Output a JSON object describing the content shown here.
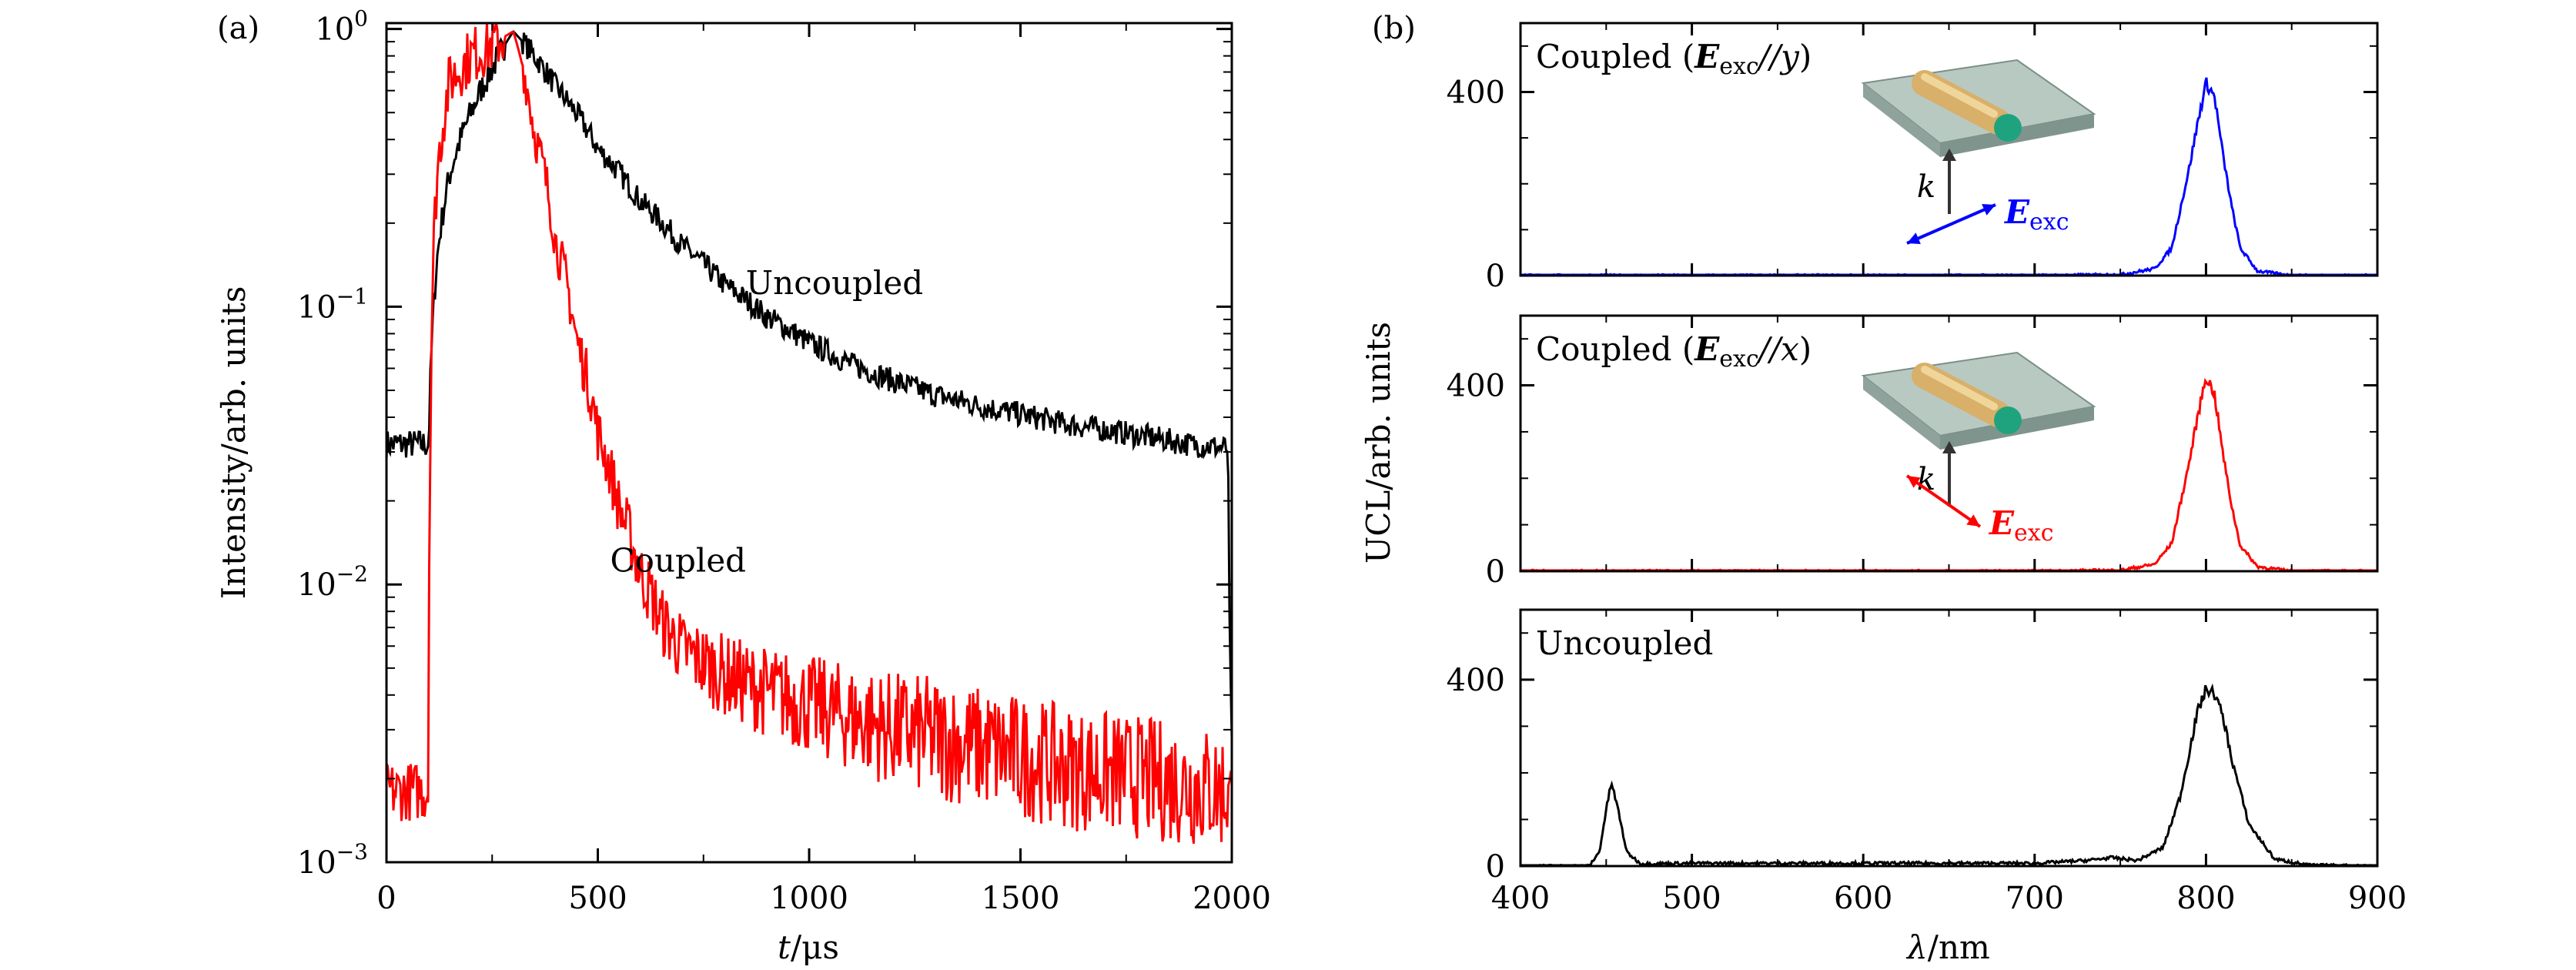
{
  "chart_data": [
    {
      "panel_label": "(a)",
      "type": "line",
      "xlabel": {
        "var": "t",
        "unit": "/μs"
      },
      "ylabel": "Intensity/arb. units",
      "xlim": [
        0,
        2000
      ],
      "ylim": [
        0.001,
        1.05
      ],
      "yscale": "log",
      "xticks": [
        0,
        500,
        1000,
        1500,
        2000
      ],
      "yticks": [
        {
          "base": "10",
          "exp": "−3",
          "value": 0.001
        },
        {
          "base": "10",
          "exp": "−2",
          "value": 0.01
        },
        {
          "base": "10",
          "exp": "−1",
          "value": 0.1
        },
        {
          "base": "10",
          "exp": "0",
          "value": 1
        }
      ],
      "series": [
        {
          "name": "Uncoupled",
          "color": "#000000",
          "x": [
            0,
            100,
            105,
            120,
            150,
            200,
            250,
            300,
            400,
            500,
            600,
            700,
            800,
            900,
            1000,
            1100,
            1200,
            1300,
            1400,
            1500,
            1600,
            1700,
            1800,
            1900,
            1990,
            1995,
            2000
          ],
          "y": [
            0.032,
            0.032,
            0.06,
            0.15,
            0.3,
            0.5,
            0.72,
            0.98,
            0.62,
            0.37,
            0.24,
            0.165,
            0.12,
            0.092,
            0.074,
            0.062,
            0.054,
            0.048,
            0.044,
            0.041,
            0.038,
            0.036,
            0.034,
            0.032,
            0.031,
            0.005,
            0.003
          ]
        },
        {
          "name": "Coupled",
          "color": "#ff0000",
          "x": [
            0,
            100,
            105,
            120,
            150,
            200,
            250,
            300,
            350,
            400,
            450,
            500,
            550,
            600,
            650,
            700,
            800,
            900,
            1000,
            1100,
            1200,
            1300,
            1400,
            1500,
            1600,
            1700,
            1800,
            1900,
            2000
          ],
          "y": [
            0.0018,
            0.0018,
            0.05,
            0.3,
            0.65,
            0.8,
            0.88,
            0.98,
            0.42,
            0.17,
            0.075,
            0.035,
            0.019,
            0.011,
            0.0074,
            0.0058,
            0.0047,
            0.0041,
            0.0037,
            0.0033,
            0.003,
            0.0028,
            0.0026,
            0.0024,
            0.0022,
            0.0021,
            0.002,
            0.0019,
            0.0018
          ]
        }
      ],
      "annotations": [
        {
          "text": "Uncoupled",
          "x": 1060,
          "y": 0.12,
          "color": "#000000"
        },
        {
          "text": "Coupled",
          "x": 690,
          "y": 0.012,
          "color": "#ff0000"
        }
      ]
    },
    {
      "panel_label": "(b)",
      "type": "line",
      "xlabel": {
        "var": "λ",
        "unit": "/nm"
      },
      "ylabel": "UCL/arb. units",
      "xlim": [
        400,
        900
      ],
      "xticks": [
        400,
        500,
        600,
        700,
        800,
        900
      ],
      "subplots": [
        {
          "title": "Coupled (",
          "e_sub": "exc",
          "pol": "//y",
          "close": ")",
          "color": "#0000ff",
          "ylim": [
            0,
            550
          ],
          "yticks": [
            0,
            400
          ],
          "inset": {
            "k": "k",
            "e_sub": "exc",
            "arrow_color": "#0000ff",
            "direction": "y"
          },
          "x": [
            400,
            700,
            750,
            770,
            780,
            790,
            795,
            800,
            805,
            810,
            815,
            820,
            830,
            850,
            900
          ],
          "y": [
            0,
            0,
            2,
            15,
            60,
            230,
            330,
            420,
            390,
            260,
            150,
            60,
            10,
            0,
            0
          ]
        },
        {
          "title": "Coupled (",
          "e_sub": "exc",
          "pol": "//x",
          "close": ")",
          "color": "#ff0000",
          "ylim": [
            0,
            550
          ],
          "yticks": [
            0,
            400
          ],
          "inset": {
            "k": "k",
            "e_sub": "exc",
            "arrow_color": "#ff0000",
            "direction": "x"
          },
          "x": [
            400,
            700,
            750,
            770,
            780,
            790,
            795,
            800,
            805,
            810,
            815,
            820,
            830,
            850,
            900
          ],
          "y": [
            0,
            0,
            2,
            15,
            60,
            230,
            330,
            420,
            380,
            250,
            140,
            55,
            10,
            0,
            0
          ]
        },
        {
          "title": "Uncoupled",
          "color": "#000000",
          "ylim": [
            0,
            550
          ],
          "yticks": [
            0,
            400
          ],
          "x": [
            400,
            440,
            446,
            450,
            453,
            457,
            462,
            470,
            500,
            600,
            700,
            730,
            745,
            760,
            775,
            785,
            795,
            800,
            805,
            810,
            815,
            825,
            840,
            860,
            900
          ],
          "y": [
            0,
            0,
            30,
            120,
            180,
            120,
            30,
            5,
            6,
            6,
            6,
            12,
            18,
            12,
            40,
            150,
            330,
            380,
            370,
            320,
            230,
            90,
            15,
            2,
            0
          ]
        }
      ]
    }
  ]
}
